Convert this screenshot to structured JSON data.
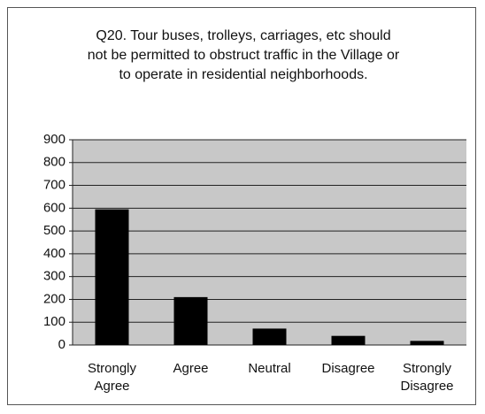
{
  "chart_data": {
    "type": "bar",
    "title": "Q20. Tour buses, trolleys, carriages, etc should\nnot be permitted to obstruct traffic in the Village or\nto operate in residential neighborhoods.",
    "categories": [
      "Strongly Agree",
      "Agree",
      "Neutral",
      "Disagree",
      "Strongly Disagree"
    ],
    "values": [
      595,
      210,
      72,
      40,
      18
    ],
    "color": "#000000",
    "ylim": [
      0,
      900
    ],
    "yticks": [
      0,
      100,
      200,
      300,
      400,
      500,
      600,
      700,
      800,
      900
    ],
    "grid": true
  }
}
